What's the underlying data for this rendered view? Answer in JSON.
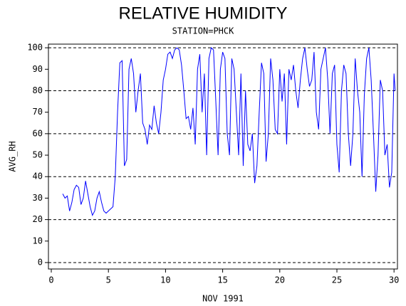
{
  "chart_data": {
    "type": "line",
    "title": "RELATIVE HUMIDITY",
    "subtitle": "STATION=PHCK",
    "x_label": "NOV 1991",
    "y_label": "AVG_RH",
    "color": "#0000ff",
    "xlim": [
      -0.25,
      30.3
    ],
    "ylim": [
      -3,
      101.7
    ],
    "xticks": [
      0,
      5,
      10,
      15,
      20,
      25,
      30
    ],
    "yticks": [
      0,
      10,
      20,
      30,
      40,
      50,
      60,
      70,
      80,
      90,
      100
    ],
    "grid_lines": [
      0,
      20,
      40,
      60,
      80,
      100
    ],
    "x": [
      1,
      1.2,
      1.4,
      1.6,
      1.8,
      2,
      2.2,
      2.4,
      2.6,
      2.8,
      3,
      3.2,
      3.4,
      3.6,
      3.8,
      4,
      4.2,
      4.4,
      4.6,
      4.8,
      5,
      5.2,
      5.4,
      5.6,
      5.8,
      6,
      6.2,
      6.4,
      6.6,
      6.8,
      7,
      7.2,
      7.4,
      7.6,
      7.8,
      8,
      8.2,
      8.4,
      8.6,
      8.8,
      9,
      9.2,
      9.4,
      9.6,
      9.8,
      10,
      10.2,
      10.4,
      10.6,
      10.8,
      11,
      11.2,
      11.4,
      11.6,
      11.8,
      12,
      12.2,
      12.4,
      12.6,
      12.8,
      13,
      13.2,
      13.4,
      13.6,
      13.8,
      14,
      14.2,
      14.4,
      14.6,
      14.8,
      15,
      15.2,
      15.4,
      15.6,
      15.8,
      16,
      16.2,
      16.4,
      16.6,
      16.8,
      17,
      17.2,
      17.4,
      17.6,
      17.8,
      18,
      18.2,
      18.4,
      18.6,
      18.8,
      19,
      19.2,
      19.4,
      19.6,
      19.8,
      20,
      20.2,
      20.4,
      20.6,
      20.8,
      21,
      21.2,
      21.4,
      21.6,
      21.8,
      22,
      22.2,
      22.4,
      22.6,
      22.8,
      23,
      23.2,
      23.4,
      23.6,
      23.8,
      24,
      24.2,
      24.4,
      24.6,
      24.8,
      25,
      25.2,
      25.4,
      25.6,
      25.8,
      26,
      26.2,
      26.4,
      26.6,
      26.8,
      27,
      27.2,
      27.4,
      27.6,
      27.8,
      28,
      28.2,
      28.4,
      28.6,
      28.8,
      29,
      29.2,
      29.4,
      29.6,
      29.8,
      30,
      30.1
    ],
    "values": [
      32,
      30,
      31,
      24,
      28,
      34,
      36,
      35,
      27,
      30,
      38,
      32,
      26,
      22,
      24,
      30,
      33,
      28,
      24,
      23,
      24,
      25,
      26,
      40,
      70,
      93,
      94,
      45,
      48,
      90,
      95,
      88,
      70,
      80,
      88,
      65,
      62,
      55,
      64,
      62,
      73,
      65,
      60,
      70,
      85,
      90,
      97,
      98,
      95,
      99,
      100,
      99,
      92,
      80,
      67,
      68,
      62,
      72,
      55,
      90,
      97,
      70,
      88,
      50,
      95,
      100,
      99,
      75,
      50,
      90,
      98,
      95,
      60,
      50,
      95,
      90,
      70,
      50,
      88,
      45,
      80,
      55,
      52,
      60,
      37,
      45,
      70,
      93,
      88,
      47,
      60,
      95,
      85,
      62,
      60,
      90,
      75,
      88,
      55,
      90,
      85,
      92,
      80,
      72,
      85,
      95,
      100,
      90,
      82,
      85,
      98,
      70,
      62,
      90,
      95,
      100,
      85,
      60,
      88,
      92,
      55,
      42,
      80,
      92,
      88,
      60,
      45,
      60,
      95,
      80,
      70,
      40,
      78,
      95,
      100,
      85,
      60,
      33,
      50,
      85,
      80,
      50,
      55,
      35,
      42,
      88,
      80
    ]
  }
}
